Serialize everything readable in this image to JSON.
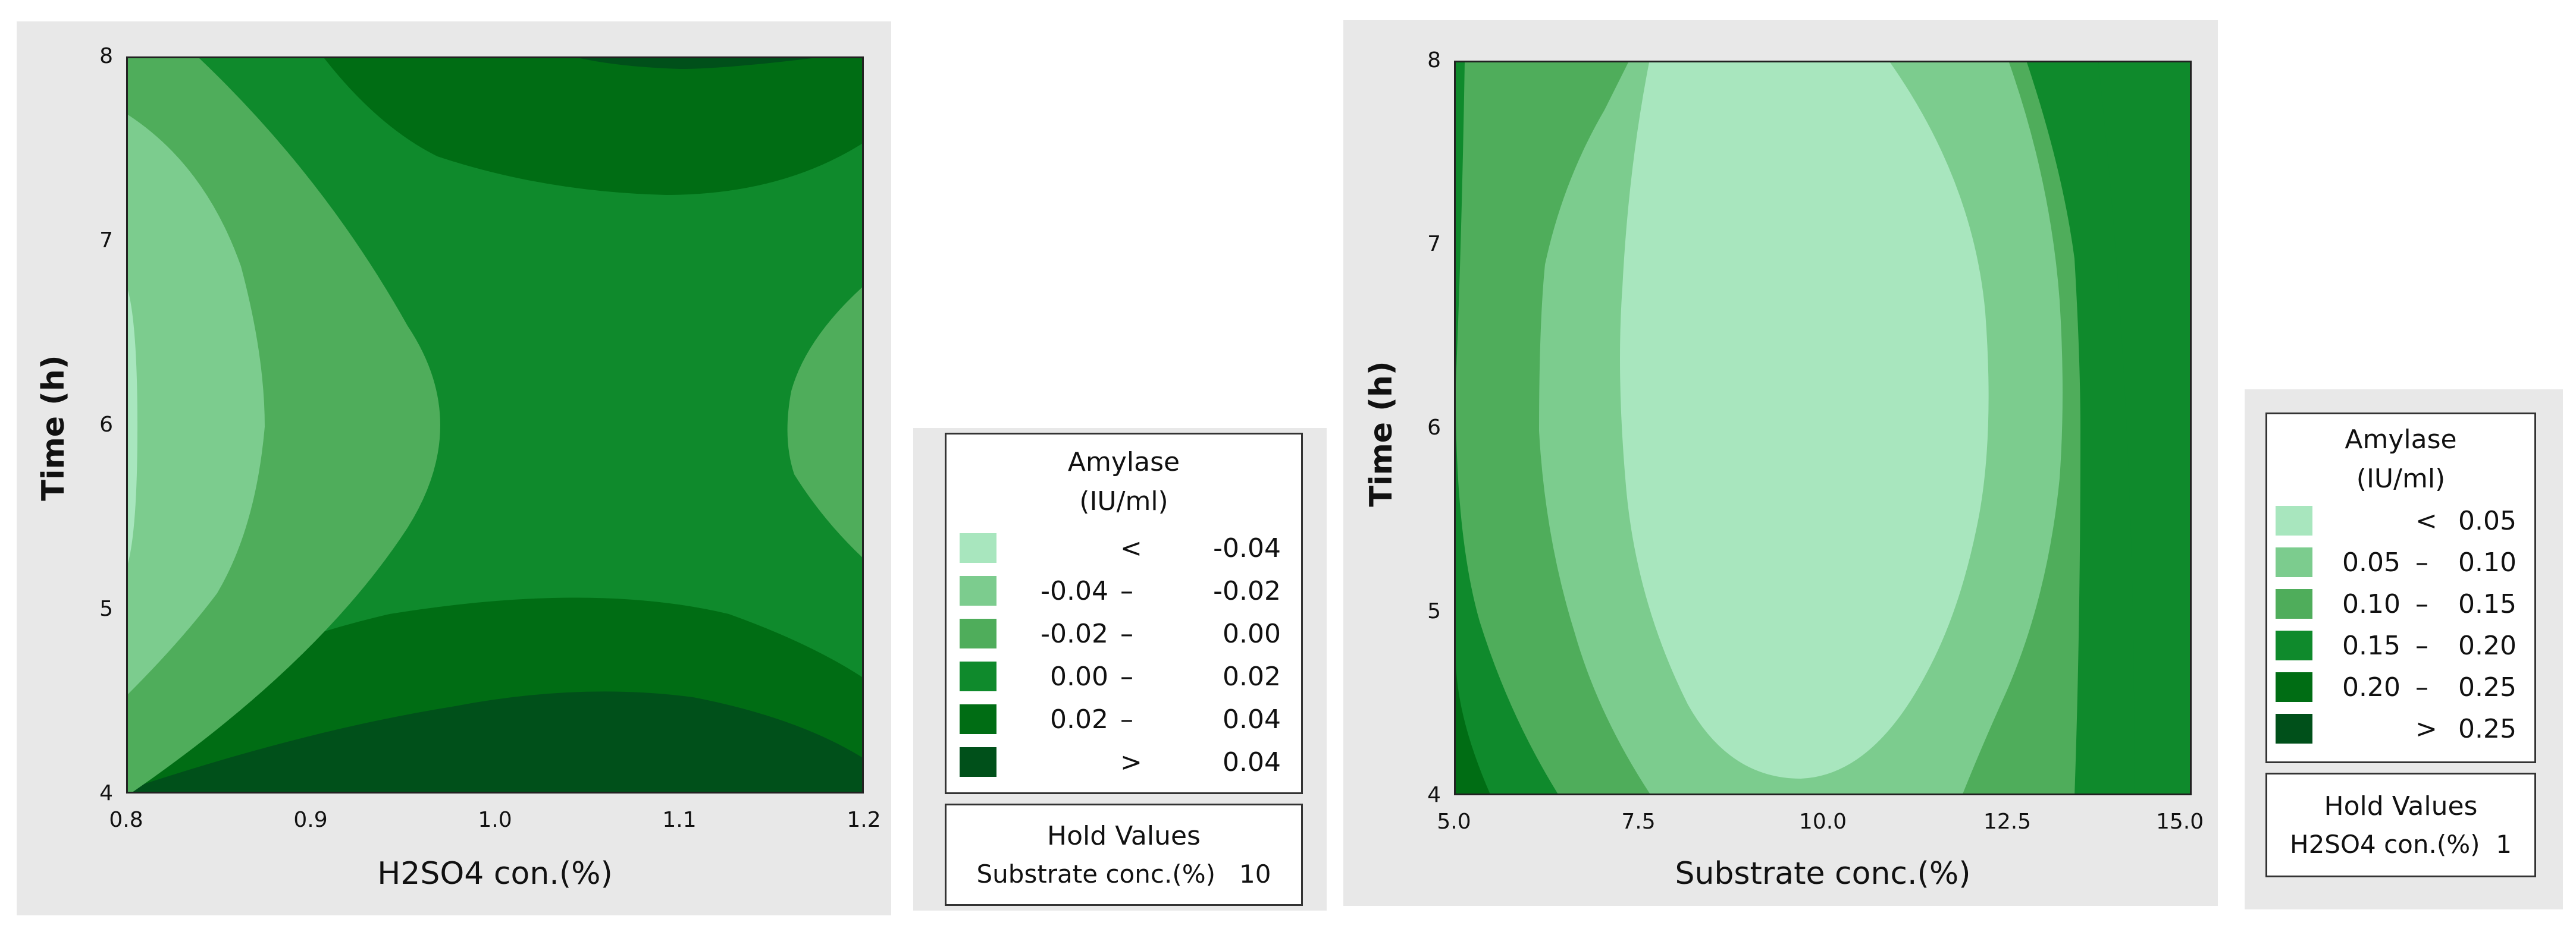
{
  "chart_data": [
    {
      "type": "contour",
      "xlabel": "H2SO4 con.(%)",
      "ylabel": "Time (h)",
      "xlim": [
        0.8,
        1.2
      ],
      "ylim": [
        4,
        8
      ],
      "x_ticks": [
        "0.8",
        "0.9",
        "1.0",
        "1.1",
        "1.2"
      ],
      "y_ticks": [
        "4",
        "5",
        "6",
        "7",
        "8"
      ],
      "legend": {
        "title_line1": "Amylase",
        "title_line2": "(IU/ml)",
        "entries": [
          {
            "low": "",
            "sep": "<",
            "high": "-0.04",
            "color": "#a8e6be"
          },
          {
            "low": "-0.04",
            "sep": "–",
            "high": "-0.02",
            "color": "#7ccc8e"
          },
          {
            "low": "-0.02",
            "sep": "–",
            "high": "0.00",
            "color": "#4fad5b"
          },
          {
            "low": "0.00",
            "sep": "–",
            "high": "0.02",
            "color": "#0f8a2c"
          },
          {
            "low": "0.02",
            "sep": "–",
            "high": "0.04",
            "color": "#006d14"
          },
          {
            "low": "",
            "sep": ">",
            "high": "0.04",
            "color": "#00501a"
          }
        ]
      },
      "hold": {
        "title": "Hold Values",
        "variable": "Substrate conc.(%)",
        "value": "10"
      }
    },
    {
      "type": "contour",
      "xlabel": "Substrate conc.(%)",
      "ylabel": "Time (h)",
      "xlim": [
        5.0,
        15.0
      ],
      "ylim": [
        4,
        8
      ],
      "x_ticks": [
        "5.0",
        "7.5",
        "10.0",
        "12.5",
        "15.0"
      ],
      "y_ticks": [
        "4",
        "5",
        "6",
        "7",
        "8"
      ],
      "legend": {
        "title_line1": "Amylase",
        "title_line2": "(IU/ml)",
        "entries": [
          {
            "low": "",
            "sep": "<",
            "high": "0.05",
            "color": "#a8e6be"
          },
          {
            "low": "0.05",
            "sep": "–",
            "high": "0.10",
            "color": "#7ccc8e"
          },
          {
            "low": "0.10",
            "sep": "–",
            "high": "0.15",
            "color": "#4fad5b"
          },
          {
            "low": "0.15",
            "sep": "–",
            "high": "0.20",
            "color": "#0f8a2c"
          },
          {
            "low": "0.20",
            "sep": "–",
            "high": "0.25",
            "color": "#006d14"
          },
          {
            "low": "",
            "sep": ">",
            "high": "0.25",
            "color": "#00501a"
          }
        ]
      },
      "hold": {
        "title": "Hold Values",
        "variable": "H2SO4 con.(%)",
        "value": "1"
      }
    }
  ]
}
